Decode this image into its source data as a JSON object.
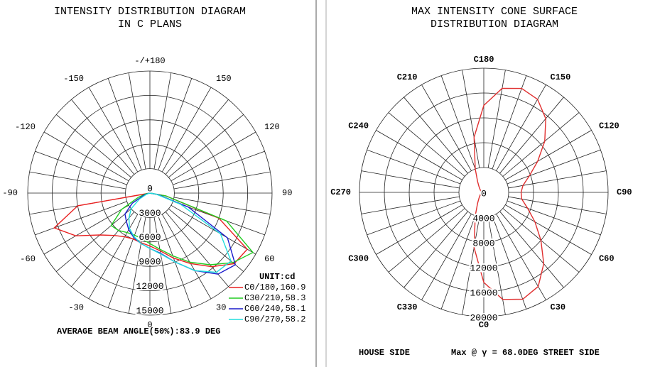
{
  "chart_data": [
    {
      "type": "polar",
      "title": [
        "INTENSITY DISTRIBUTION DIAGRAM",
        "IN C PLANS"
      ],
      "rlim": [
        0,
        15000
      ],
      "rticks": [
        0,
        3000,
        6000,
        9000,
        12000,
        15000
      ],
      "angle_ticks": [
        {
          "value": 180,
          "label": "-/+180"
        },
        -150,
        150,
        -120,
        120,
        -90,
        90,
        -60,
        60,
        -30,
        30,
        0
      ],
      "legend_title": "UNIT:cd",
      "x": [
        -90,
        -80,
        -70,
        -60,
        -50,
        -40,
        -30,
        -20,
        -10,
        0,
        10,
        20,
        30,
        40,
        50,
        60,
        70,
        80,
        90
      ],
      "series": [
        {
          "name": "C0/180,160.9",
          "color": "#e82020",
          "values": [
            0,
            9000,
            12500,
            10500,
            8000,
            6800,
            6200,
            6000,
            6200,
            6500,
            7200,
            8500,
            10000,
            11800,
            13500,
            13800,
            9000,
            2000,
            0
          ]
        },
        {
          "name": "C30/210,58.3",
          "color": "#20cc20",
          "values": [
            0,
            500,
            1500,
            4000,
            6200,
            6000,
            5600,
            5500,
            5700,
            6200,
            7000,
            8200,
            9800,
            11500,
            13300,
            14600,
            10000,
            2000,
            0
          ]
        },
        {
          "name": "C60/240,58.1",
          "color": "#1a1acc",
          "values": [
            0,
            200,
            800,
            2500,
            4000,
            4500,
            5200,
            5800,
            6300,
            6800,
            7500,
            9000,
            11000,
            13000,
            13700,
            11000,
            5000,
            1000,
            0
          ]
        },
        {
          "name": "C90/270,58.2",
          "color": "#20dddd",
          "values": [
            0,
            100,
            500,
            1500,
            3000,
            4000,
            5000,
            5700,
            6300,
            6800,
            7600,
            9000,
            11000,
            12700,
            13000,
            10000,
            4000,
            800,
            0
          ]
        }
      ],
      "footer": "AVERAGE BEAM ANGLE(50%):83.9 DEG"
    },
    {
      "type": "polar",
      "title": [
        "MAX INTENSITY CONE SURFACE",
        "DISTRIBUTION DIAGRAM"
      ],
      "rlim": [
        0,
        20000
      ],
      "rticks": [
        0,
        4000,
        8000,
        12000,
        16000,
        20000
      ],
      "angle_ticks": [
        {
          "value": 180,
          "label": "C180"
        },
        {
          "value": 210,
          "label": "C210"
        },
        {
          "value": 150,
          "label": "C150"
        },
        {
          "value": 240,
          "label": "C240"
        },
        {
          "value": 120,
          "label": "C120"
        },
        {
          "value": 270,
          "label": "C270"
        },
        {
          "value": 90,
          "label": "C90"
        },
        {
          "value": 300,
          "label": "C300"
        },
        {
          "value": 60,
          "label": "C60"
        },
        {
          "value": 330,
          "label": "C330"
        },
        {
          "value": 30,
          "label": "C30"
        },
        {
          "value": 0,
          "label": "C0"
        }
      ],
      "x": [
        0,
        10,
        20,
        30,
        40,
        50,
        60,
        70,
        80,
        90,
        100,
        110,
        120,
        130,
        140,
        150,
        160,
        170,
        180,
        190,
        200,
        210,
        220,
        230,
        240,
        250,
        260,
        270,
        280,
        290,
        300,
        310,
        320,
        330,
        340,
        350
      ],
      "series": [
        {
          "color": "#e03030",
          "values": [
            14500,
            17500,
            18300,
            17500,
            15000,
            12000,
            9500,
            7500,
            6200,
            6000,
            6400,
            7800,
            10000,
            12800,
            15500,
            17300,
            17800,
            17000,
            14000,
            9000,
            4000,
            2000,
            1200,
            800,
            600,
            500,
            400,
            400,
            400,
            500,
            600,
            800,
            1200,
            2000,
            4000,
            9000
          ]
        }
      ],
      "footer_left": "HOUSE SIDE",
      "footer_right": "Max @ γ = 68.0DEG STREET SIDE"
    }
  ]
}
